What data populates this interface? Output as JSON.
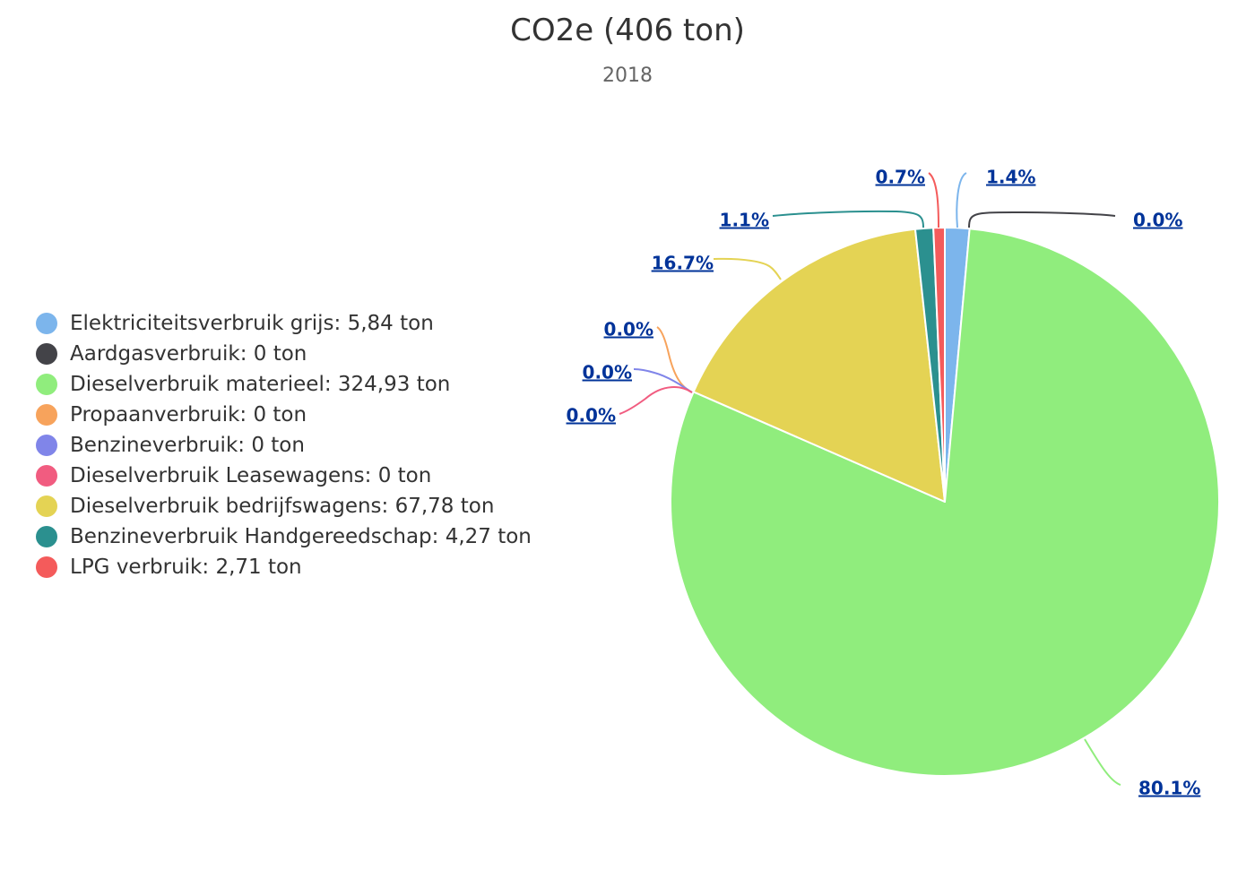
{
  "title": "CO2e (406 ton)",
  "subtitle": "2018",
  "chart_data": {
    "type": "pie",
    "title": "CO2e (406 ton)",
    "subtitle": "2018",
    "unit": "ton",
    "legend_position": "left",
    "slices": [
      {
        "name": "Elektriciteitsverbruik grijs",
        "value": 5.84,
        "value_label": "5,84",
        "percent_label": "1.4%",
        "color": "#7cb5ec"
      },
      {
        "name": "Aardgasverbruik",
        "value": 0,
        "value_label": "0",
        "percent_label": "0.0%",
        "color": "#434348"
      },
      {
        "name": "Dieselverbruik materieel",
        "value": 324.93,
        "value_label": "324,93",
        "percent_label": "80.1%",
        "color": "#90ed7d"
      },
      {
        "name": "Propaanverbruik",
        "value": 0,
        "value_label": "0",
        "percent_label": "0.0%",
        "color": "#f7a35c"
      },
      {
        "name": "Benzineverbruik",
        "value": 0,
        "value_label": "0",
        "percent_label": "0.0%",
        "color": "#8085e9"
      },
      {
        "name": "Dieselverbruik Leasewagens",
        "value": 0,
        "value_label": "0",
        "percent_label": "0.0%",
        "color": "#f15c80"
      },
      {
        "name": "Dieselverbruik bedrijfswagens",
        "value": 67.78,
        "value_label": "67,78",
        "percent_label": "16.7%",
        "color": "#e4d354"
      },
      {
        "name": "Benzineverbruik Handgereedschap",
        "value": 4.27,
        "value_label": "4,27",
        "percent_label": "1.1%",
        "color": "#2b908f"
      },
      {
        "name": "LPG verbruik",
        "value": 2.71,
        "value_label": "2,71",
        "percent_label": "0.7%",
        "color": "#f45b5b"
      }
    ]
  }
}
